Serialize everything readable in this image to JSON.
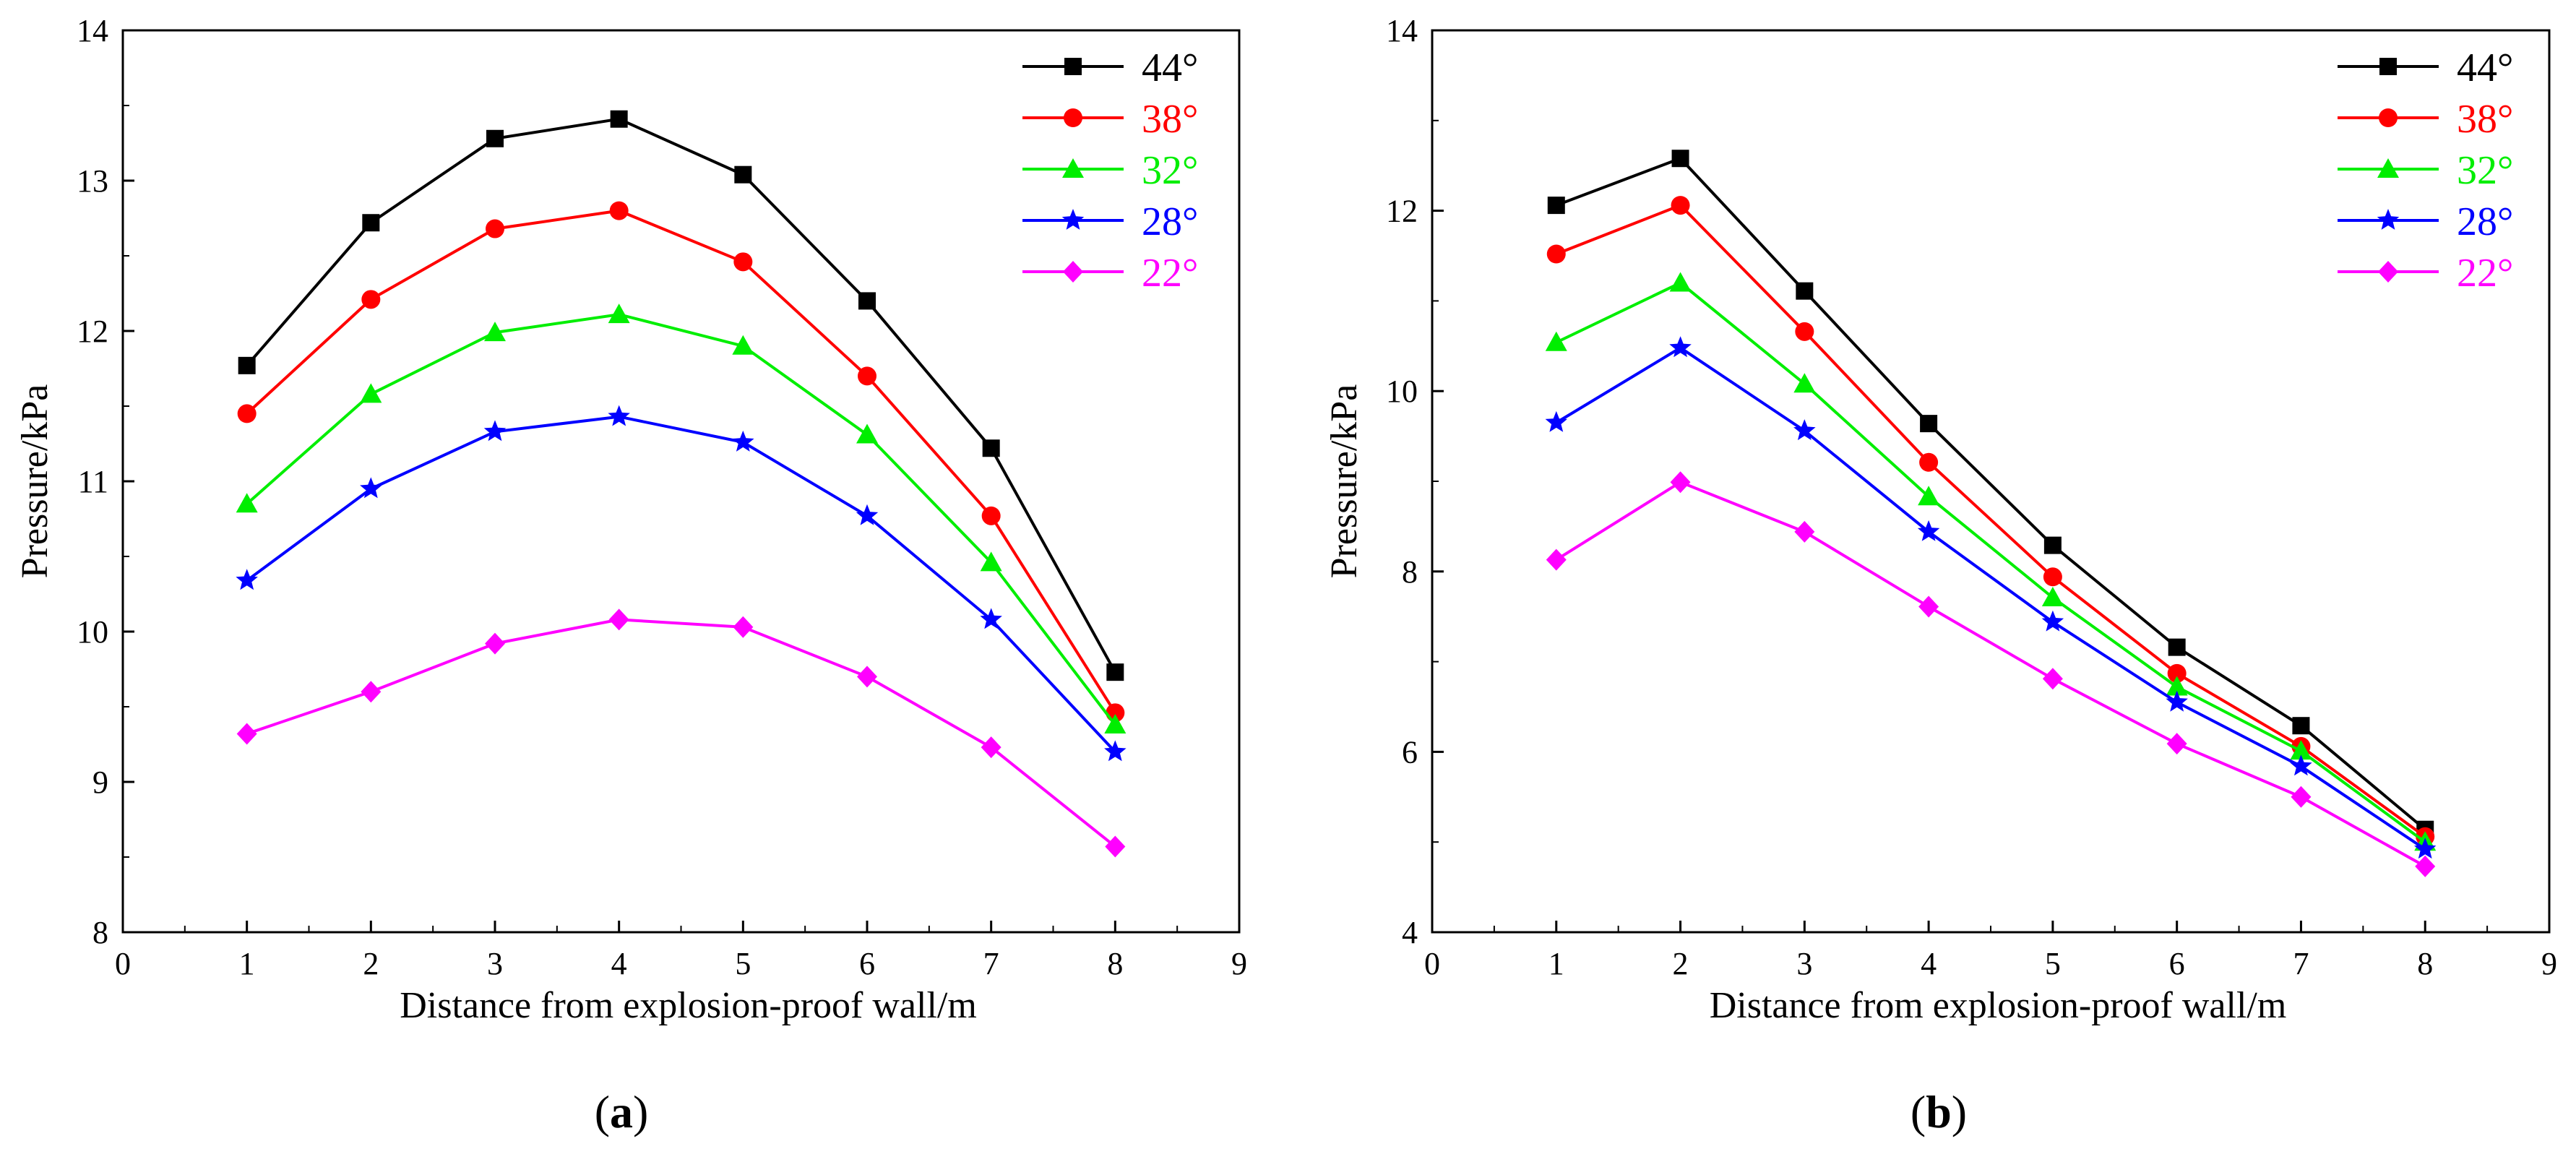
{
  "chart_data": [
    {
      "type": "line",
      "panel_label": "a",
      "xlabel": "Distance from explosion-proof wall/m",
      "ylabel": "Pressure/kPa",
      "xlim": [
        0,
        9
      ],
      "ylim": [
        8,
        14
      ],
      "xticks": [
        0,
        1,
        2,
        3,
        4,
        5,
        6,
        7,
        8,
        9
      ],
      "yticks": [
        8,
        9,
        10,
        11,
        12,
        13,
        14
      ],
      "x": [
        1,
        2,
        3,
        4,
        5,
        6,
        7,
        8
      ],
      "legend_position": "top-right",
      "series": [
        {
          "name": "44°",
          "color": "#000000",
          "marker": "square",
          "values": [
            11.77,
            12.72,
            13.28,
            13.41,
            13.04,
            12.2,
            11.22,
            9.73
          ]
        },
        {
          "name": "38°",
          "color": "#ff0000",
          "marker": "circle",
          "values": [
            11.45,
            12.21,
            12.68,
            12.8,
            12.46,
            11.7,
            10.77,
            9.46
          ]
        },
        {
          "name": "32°",
          "color": "#00ee00",
          "marker": "triangle",
          "values": [
            10.85,
            11.58,
            11.99,
            12.11,
            11.9,
            11.31,
            10.46,
            9.38
          ]
        },
        {
          "name": "28°",
          "color": "#0000ff",
          "marker": "star",
          "values": [
            10.34,
            10.95,
            11.33,
            11.43,
            11.26,
            10.77,
            10.08,
            9.2
          ]
        },
        {
          "name": "22°",
          "color": "#ff00ff",
          "marker": "diamond",
          "values": [
            9.32,
            9.6,
            9.92,
            10.08,
            10.03,
            9.7,
            9.23,
            8.57
          ]
        }
      ]
    },
    {
      "type": "line",
      "panel_label": "b",
      "xlabel": "Distance from explosion-proof wall/m",
      "ylabel": "Pressure/kPa",
      "xlim": [
        0,
        9
      ],
      "ylim": [
        4,
        14
      ],
      "xticks": [
        0,
        1,
        2,
        3,
        4,
        5,
        6,
        7,
        8,
        9
      ],
      "yticks": [
        4,
        6,
        8,
        10,
        12,
        14
      ],
      "x": [
        1,
        2,
        3,
        4,
        5,
        6,
        7,
        8
      ],
      "legend_position": "top-right",
      "series": [
        {
          "name": "44°",
          "color": "#000000",
          "marker": "square",
          "values": [
            12.06,
            12.58,
            11.11,
            9.64,
            8.29,
            7.16,
            6.29,
            5.14
          ]
        },
        {
          "name": "38°",
          "color": "#ff0000",
          "marker": "circle",
          "values": [
            11.52,
            12.06,
            10.66,
            9.21,
            7.94,
            6.87,
            6.06,
            5.06
          ]
        },
        {
          "name": "32°",
          "color": "#00ee00",
          "marker": "triangle",
          "values": [
            10.54,
            11.2,
            10.08,
            8.83,
            7.71,
            6.72,
            6.01,
            5.0
          ]
        },
        {
          "name": "28°",
          "color": "#0000ff",
          "marker": "star",
          "values": [
            9.65,
            10.48,
            9.56,
            8.44,
            7.44,
            6.55,
            5.84,
            4.92
          ]
        },
        {
          "name": "22°",
          "color": "#ff00ff",
          "marker": "diamond",
          "values": [
            8.13,
            8.99,
            8.44,
            7.61,
            6.81,
            6.09,
            5.5,
            4.73
          ]
        }
      ]
    }
  ]
}
